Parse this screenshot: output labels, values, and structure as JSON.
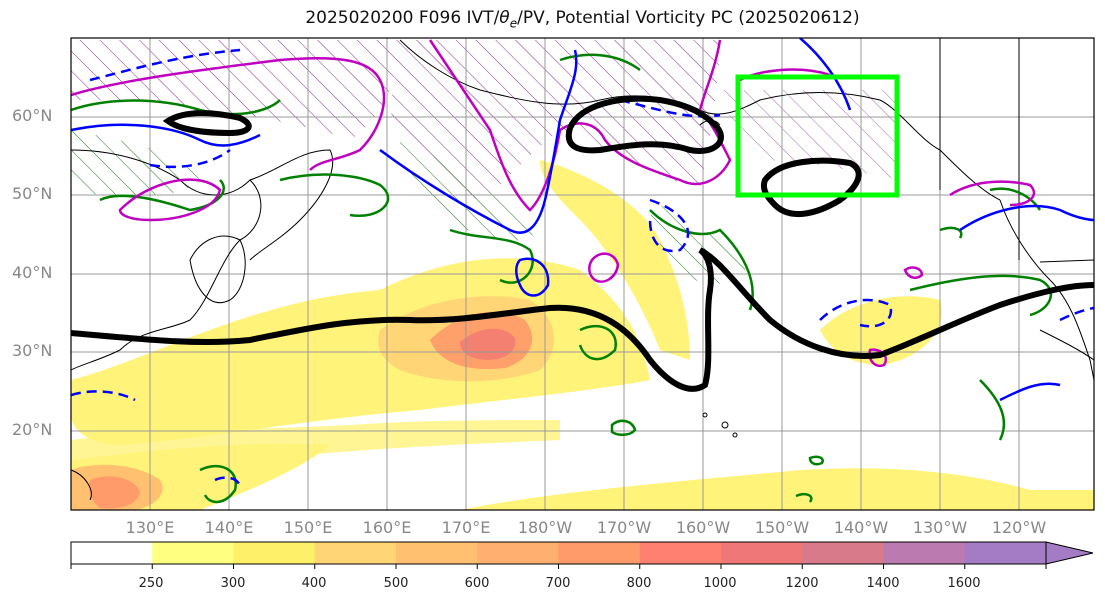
{
  "title": {
    "prefix": "2025020200 F096 IVT/",
    "theta": "θ",
    "theta_sub": "e",
    "suffix": "/PV, Potential Vorticity PC (2025020612)"
  },
  "lat_labels": [
    "60°N",
    "50°N",
    "40°N",
    "30°N",
    "20°N"
  ],
  "lon_labels": [
    "130°E",
    "140°E",
    "150°E",
    "160°E",
    "170°E",
    "180°W",
    "170°W",
    "160°W",
    "150°W",
    "140°W",
    "130°W",
    "120°W"
  ],
  "colorbar": {
    "tick_labels": [
      "250",
      "300",
      "400",
      "500",
      "600",
      "700",
      "800",
      "1000",
      "1200",
      "1400",
      "1600"
    ],
    "colors": [
      "#ffffff",
      "#ffff80",
      "#fff06a",
      "#ffd575",
      "#ffc070",
      "#ffb070",
      "#ff9a6a",
      "#ff8070",
      "#ef7777",
      "#d87a8a",
      "#bb7ab0",
      "#a47cc6"
    ]
  },
  "colors": {
    "ivt_low": "#fff37a",
    "ivt_mid": "#ffc070",
    "ivt_high": "#ff8a6a",
    "pv_contour": "#000000",
    "theta_e_magenta": "#c000c0",
    "pv_blue": "#0000ff",
    "pv_green": "#008000",
    "box": "#00ff00"
  }
}
